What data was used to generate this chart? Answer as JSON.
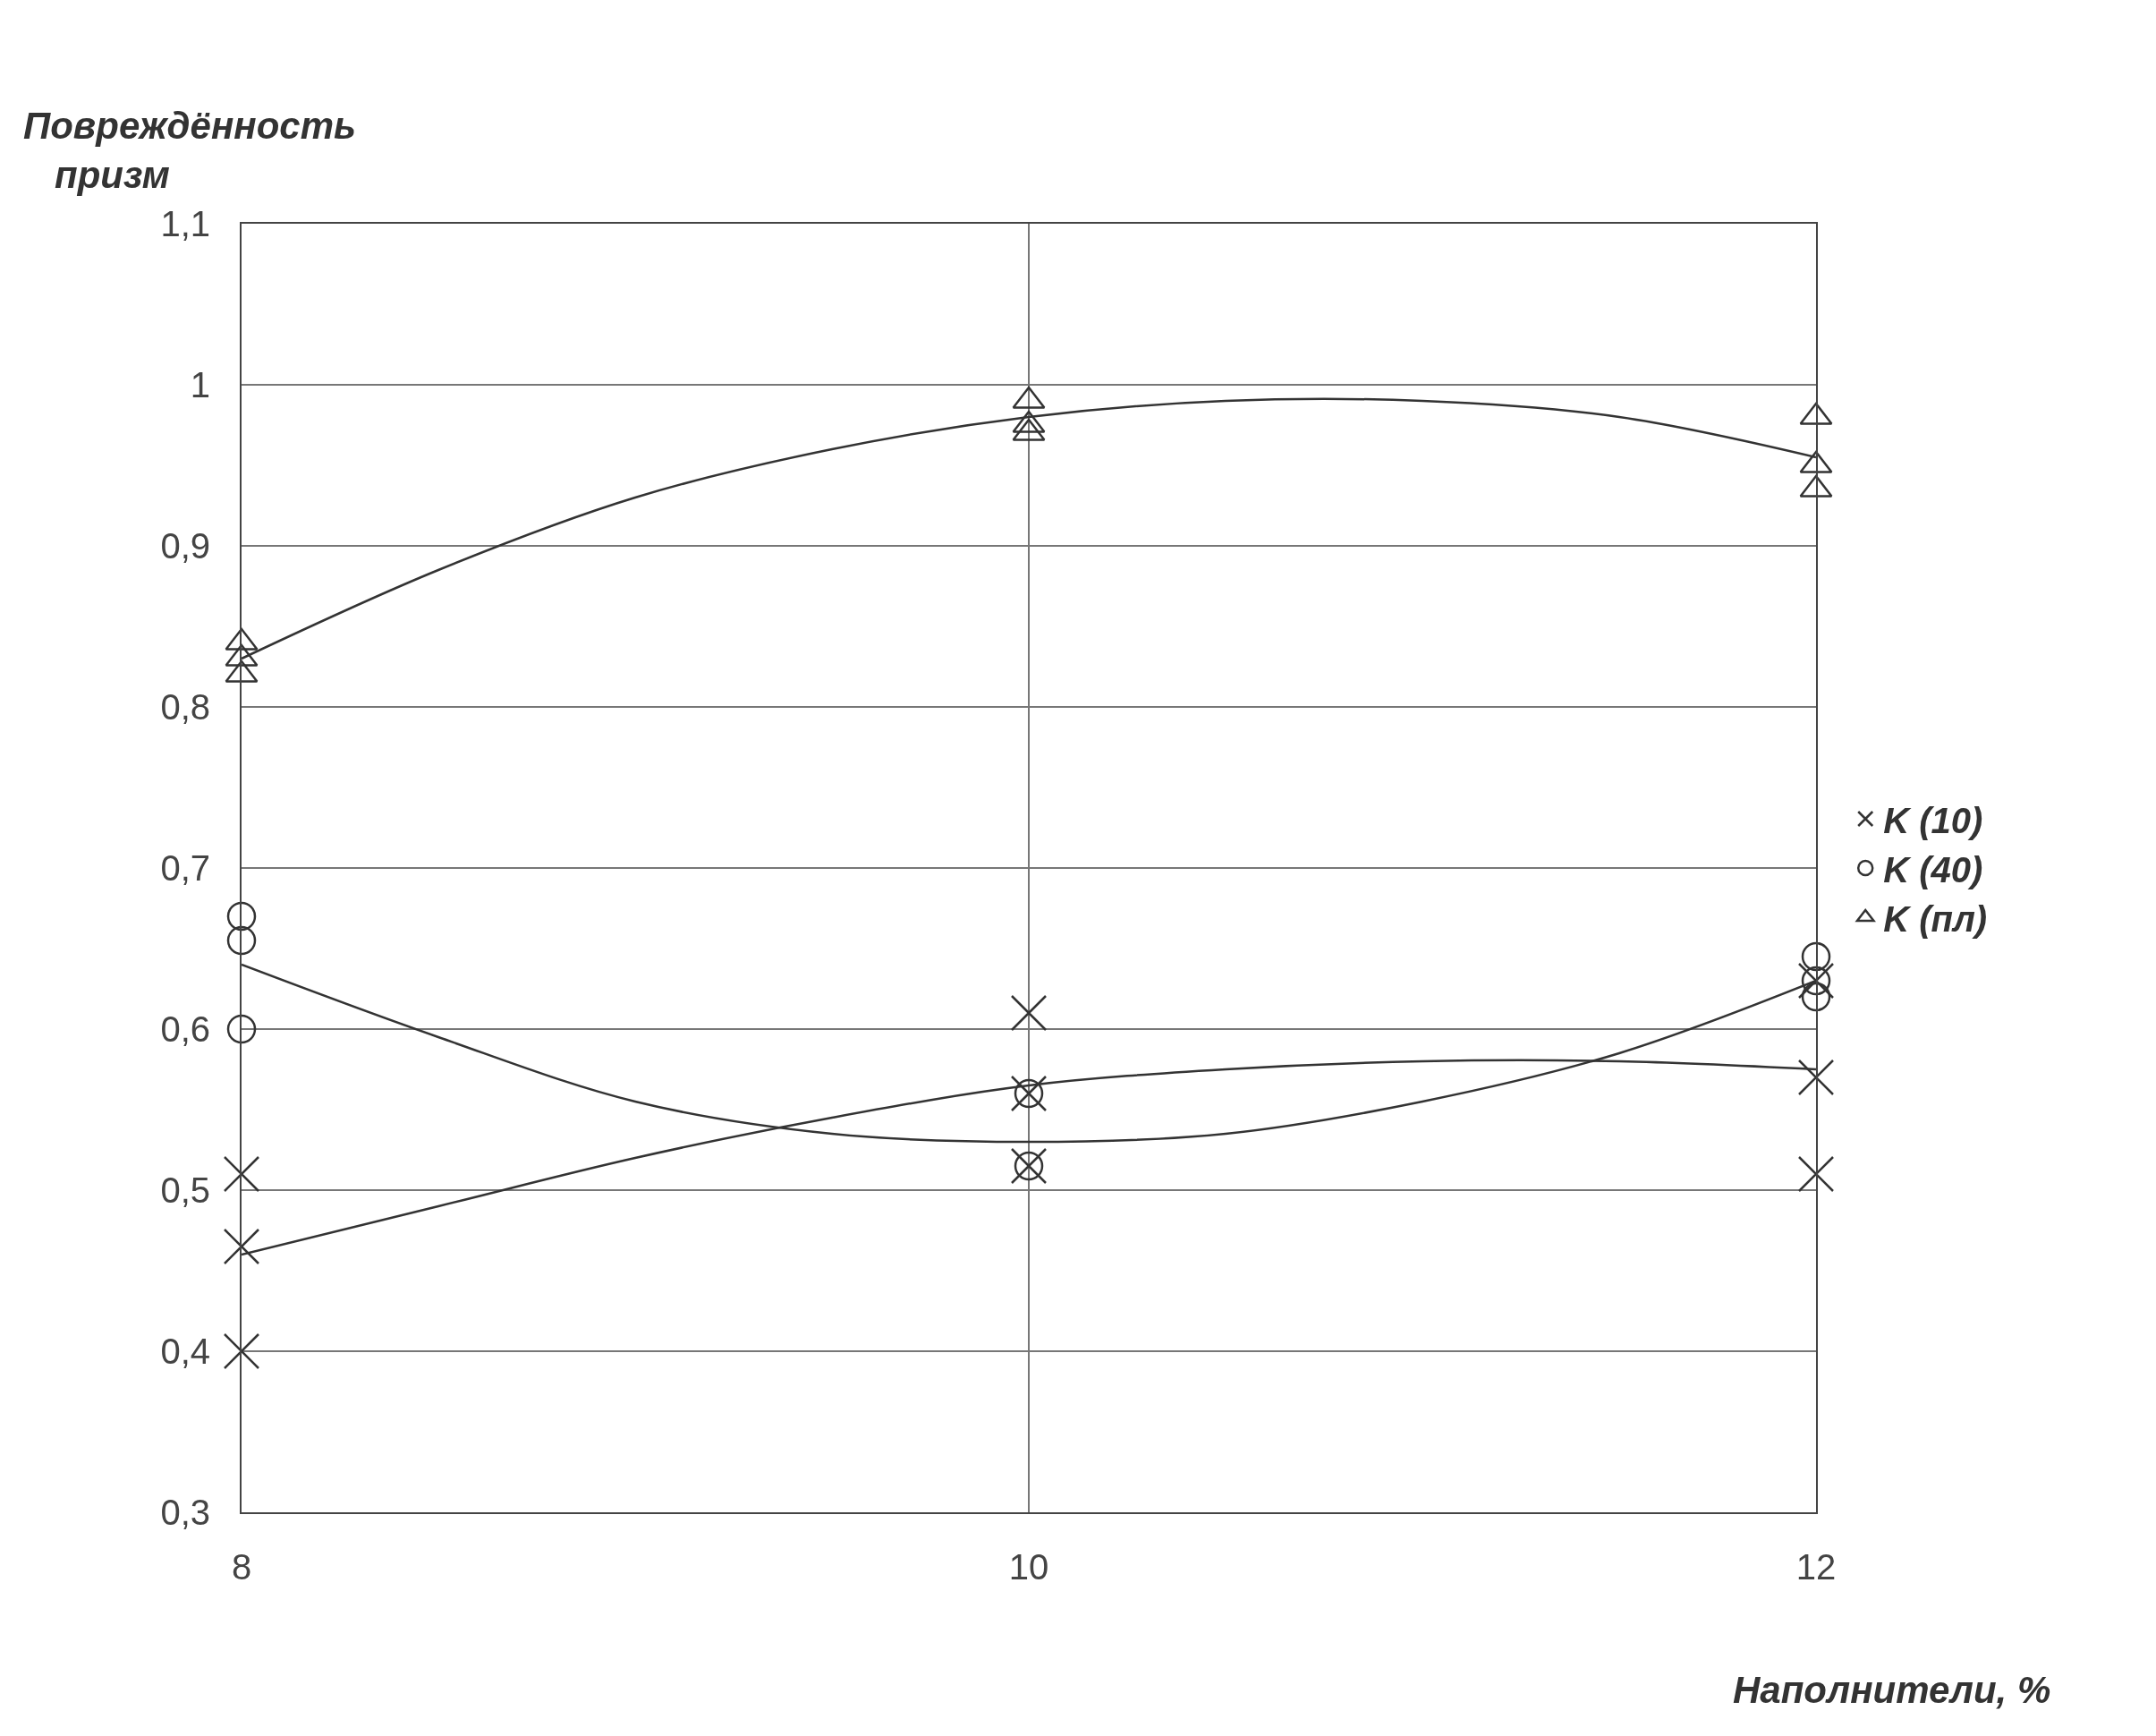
{
  "chart_data": {
    "type": "scatter",
    "ylabel": "Повреждённость призм",
    "xlabel": "Наполнители, %",
    "xlim": [
      8,
      12
    ],
    "xticks": [
      8,
      10,
      12
    ],
    "ylim": [
      0.3,
      1.1
    ],
    "yticks": [
      {
        "value": 0.3,
        "label": "0,3"
      },
      {
        "value": 0.4,
        "label": "0,4"
      },
      {
        "value": 0.5,
        "label": "0,5"
      },
      {
        "value": 0.6,
        "label": "0,6"
      },
      {
        "value": 0.7,
        "label": "0,7"
      },
      {
        "value": 0.8,
        "label": "0,8"
      },
      {
        "value": 0.9,
        "label": "0,9"
      },
      {
        "value": 1,
        "label": "1"
      },
      {
        "value": 1.1,
        "label": "1,1"
      }
    ],
    "grid": true,
    "legend": "right",
    "series": [
      {
        "name": "K (10)",
        "color": "#333333",
        "marker": "cross",
        "x": [
          8,
          8,
          8,
          10,
          10,
          10,
          12,
          12,
          12
        ],
        "values": [
          0.51,
          0.465,
          0.4,
          0.61,
          0.56,
          0.515,
          0.63,
          0.57,
          0.51
        ]
      },
      {
        "name": "K (40)",
        "color": "#333333",
        "marker": "circle",
        "x": [
          8,
          8,
          8,
          10,
          10,
          12,
          12,
          12
        ],
        "values": [
          0.67,
          0.655,
          0.6,
          0.56,
          0.515,
          0.645,
          0.63,
          0.62
        ]
      },
      {
        "name": "K (пл)",
        "color": "#333333",
        "marker": "triangle",
        "x": [
          8,
          8,
          8,
          10,
          10,
          10,
          12,
          12,
          12
        ],
        "values": [
          0.84,
          0.83,
          0.82,
          0.99,
          0.975,
          0.97,
          0.98,
          0.95,
          0.935
        ]
      },
      {
        "type": "line",
        "color": "#333333",
        "x": [
          8,
          8.5,
          9,
          9.5,
          10,
          10.5,
          11,
          11.5,
          12
        ],
        "values": [
          0.46,
          0.49,
          0.52,
          0.545,
          0.565,
          0.575,
          0.58,
          0.58,
          0.575
        ]
      },
      {
        "type": "line",
        "color": "#333333",
        "x": [
          8,
          8.5,
          9,
          9.5,
          10,
          10.5,
          11,
          11.5,
          12
        ],
        "values": [
          0.64,
          0.595,
          0.555,
          0.535,
          0.53,
          0.535,
          0.555,
          0.585,
          0.63
        ]
      },
      {
        "type": "line",
        "color": "#333333",
        "x": [
          8,
          8.5,
          9,
          9.5,
          10,
          10.5,
          11,
          11.5,
          12
        ],
        "values": [
          0.83,
          0.885,
          0.93,
          0.96,
          0.98,
          0.99,
          0.99,
          0.98,
          0.955
        ]
      }
    ]
  }
}
